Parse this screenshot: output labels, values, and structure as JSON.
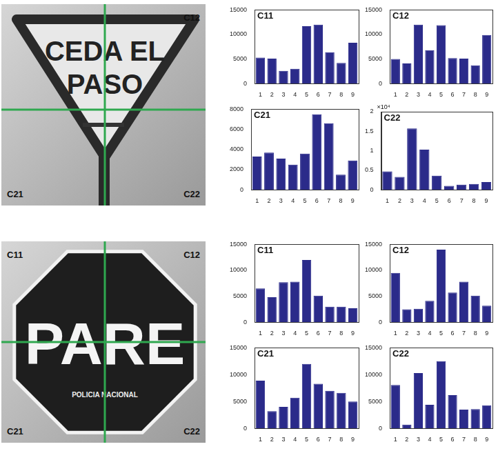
{
  "images": [
    {
      "sign": [
        "CEDA EL",
        "PASO"
      ],
      "labels": {
        "top_right": "C12",
        "bottom_left": "C21",
        "bottom_right": "C22"
      }
    },
    {
      "sign": [
        "PARE"
      ],
      "small_text": "POLICIA NACIONAL",
      "labels": {
        "top_left": "C11",
        "top_right": "C12",
        "bottom_left": "C21",
        "bottom_right": "C22"
      }
    }
  ],
  "chart_data": [
    {
      "type": "bar",
      "title": "C11",
      "categories": [
        "1",
        "2",
        "3",
        "4",
        "5",
        "6",
        "7",
        "8",
        "9"
      ],
      "values": [
        5300,
        5100,
        2600,
        3000,
        11700,
        12000,
        6400,
        4200,
        8300
      ],
      "color": "#2b2b8a",
      "ylim": [
        0,
        15000
      ],
      "yticks": [
        0,
        5000,
        10000,
        15000
      ],
      "grid": false
    },
    {
      "type": "bar",
      "title": "C12",
      "categories": [
        "1",
        "2",
        "3",
        "4",
        "5",
        "6",
        "7",
        "8",
        "9"
      ],
      "values": [
        5000,
        4100,
        12000,
        6800,
        11900,
        5200,
        5100,
        3700,
        9900
      ],
      "color": "#2b2b8a",
      "ylim": [
        0,
        15000
      ],
      "yticks": [
        0,
        5000,
        10000,
        15000
      ],
      "grid": false
    },
    {
      "type": "bar",
      "title": "C21",
      "categories": [
        "1",
        "2",
        "3",
        "4",
        "5",
        "6",
        "7",
        "8",
        "9"
      ],
      "values": [
        3300,
        3700,
        3100,
        2500,
        3600,
        7500,
        6600,
        1500,
        2900
      ],
      "color": "#2b2b8a",
      "ylim": [
        0,
        8000
      ],
      "yticks": [
        0,
        2000,
        4000,
        6000,
        8000
      ],
      "grid": false
    },
    {
      "type": "bar",
      "title": "C22",
      "annotation": "×10⁴",
      "categories": [
        "1",
        "2",
        "3",
        "4",
        "5",
        "6",
        "7",
        "8",
        "9"
      ],
      "values": [
        0.47,
        0.33,
        1.57,
        1.03,
        0.36,
        0.1,
        0.13,
        0.15,
        0.2
      ],
      "color": "#2b2b8a",
      "ylim": [
        0,
        2
      ],
      "yticks": [
        0,
        0.5,
        1,
        1.5,
        2
      ],
      "grid": false
    },
    {
      "type": "bar",
      "title": "C11",
      "categories": [
        "1",
        "2",
        "3",
        "4",
        "5",
        "6",
        "7",
        "8",
        "9"
      ],
      "values": [
        6500,
        4800,
        7700,
        7800,
        12000,
        5100,
        3000,
        3000,
        2700
      ],
      "color": "#2b2b8a",
      "ylim": [
        0,
        15000
      ],
      "yticks": [
        0,
        5000,
        10000,
        15000
      ],
      "grid": false
    },
    {
      "type": "bar",
      "title": "C12",
      "categories": [
        "1",
        "2",
        "3",
        "4",
        "5",
        "6",
        "7",
        "8",
        "9"
      ],
      "values": [
        9500,
        2500,
        2600,
        4100,
        14000,
        5700,
        7800,
        5100,
        3200
      ],
      "color": "#2b2b8a",
      "ylim": [
        0,
        15000
      ],
      "yticks": [
        0,
        5000,
        10000,
        15000
      ],
      "grid": false
    },
    {
      "type": "bar",
      "title": "C21",
      "categories": [
        "1",
        "2",
        "3",
        "4",
        "5",
        "6",
        "7",
        "8",
        "9"
      ],
      "values": [
        8900,
        3200,
        4000,
        5700,
        12000,
        8300,
        7000,
        6600,
        5000
      ],
      "color": "#2b2b8a",
      "ylim": [
        0,
        15000
      ],
      "yticks": [
        0,
        5000,
        10000,
        15000
      ],
      "grid": false
    },
    {
      "type": "bar",
      "title": "C22",
      "categories": [
        "1",
        "2",
        "3",
        "4",
        "5",
        "6",
        "7",
        "8",
        "9"
      ],
      "values": [
        8100,
        700,
        10300,
        4400,
        12500,
        6200,
        3500,
        3600,
        4300
      ],
      "color": "#2b2b8a",
      "ylim": [
        0,
        15000
      ],
      "yticks": [
        0,
        5000,
        10000,
        15000
      ],
      "grid": false
    }
  ]
}
